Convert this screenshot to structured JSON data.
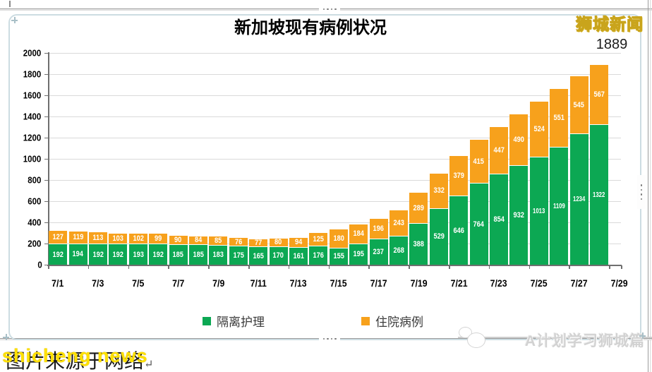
{
  "editor": {
    "brand_watermark": "狮城新闻",
    "handles": {
      "top_dots": "····",
      "bottom_dots": "····",
      "right_dots": "⁞⁞"
    }
  },
  "footer": {
    "source_text": "图片来源于网络",
    "paragraph_mark": "↵",
    "overlay_watermark": "shicheng news",
    "right_watermark": "A计划学习狮城篇"
  },
  "colors": {
    "isolation_green": "#0ca853",
    "hospital_orange": "#f7a11c",
    "brand_yellow": "#ffff00",
    "gridline": "#dadada",
    "axis": "#6f6f6f"
  },
  "chart_data": {
    "type": "bar",
    "stacked": true,
    "title": "新加坡现有病例状况",
    "xlabel": "",
    "ylabel": "",
    "ylim": [
      0,
      2000
    ],
    "y_ticks": [
      0,
      200,
      400,
      600,
      800,
      1000,
      1200,
      1400,
      1600,
      1800,
      2000
    ],
    "grid": true,
    "legend_position": "bottom",
    "categories": [
      "7/1",
      "7/2",
      "7/3",
      "7/4",
      "7/5",
      "7/6",
      "7/7",
      "7/8",
      "7/9",
      "7/10",
      "7/11",
      "7/12",
      "7/13",
      "7/14",
      "7/15",
      "7/16",
      "7/17",
      "7/18",
      "7/19",
      "7/20",
      "7/21",
      "7/22",
      "7/23",
      "7/24",
      "7/25",
      "7/26",
      "7/27",
      "7/28"
    ],
    "x_tick_labels": [
      "7/1",
      "7/3",
      "7/5",
      "7/7",
      "7/9",
      "7/11",
      "7/13",
      "7/15",
      "7/17",
      "7/19",
      "7/21",
      "7/23",
      "7/25",
      "7/27",
      "7/29"
    ],
    "series": [
      {
        "name": "隔离护理",
        "color": "#0ca853",
        "values": [
          192,
          194,
          192,
          192,
          193,
          192,
          185,
          185,
          183,
          175,
          165,
          170,
          161,
          176,
          155,
          195,
          237,
          268,
          388,
          529,
          646,
          764,
          854,
          932,
          1013,
          1109,
          1234,
          1322
        ]
      },
      {
        "name": "住院病例",
        "color": "#f7a11c",
        "values": [
          127,
          119,
          113,
          103,
          102,
          99,
          90,
          84,
          85,
          76,
          77,
          80,
          94,
          125,
          180,
          184,
          196,
          243,
          289,
          332,
          379,
          415,
          447,
          490,
          524,
          551,
          545,
          567
        ]
      }
    ],
    "total_label": {
      "value": "1889",
      "category": "7/28"
    }
  }
}
